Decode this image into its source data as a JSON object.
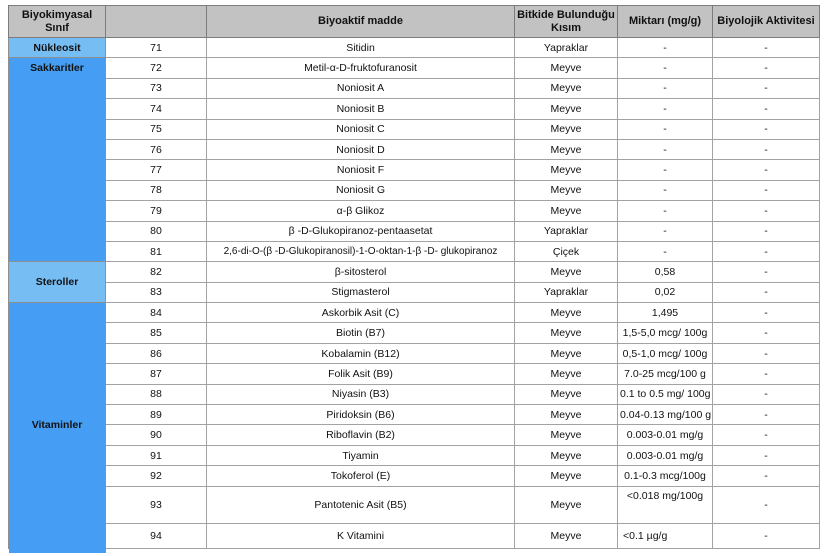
{
  "table": {
    "columns": [
      "Biyokimyasal Sınıf",
      "",
      "Biyoaktif madde",
      "Bitkide Bulunduğu Kısım",
      "Miktarı (mg/g)",
      "Biyolojik Aktivitesi"
    ],
    "groups": [
      {
        "label": "Nükleosit",
        "shade": "light",
        "span": 1,
        "valign": "middle"
      },
      {
        "label": "Sakkaritler",
        "shade": "dark",
        "span": 10,
        "valign": "top"
      },
      {
        "label": "Steroller",
        "shade": "light",
        "span": 2,
        "valign": "middle"
      },
      {
        "label": "Vitaminler",
        "shade": "dark",
        "span": 11,
        "valign": "middle"
      }
    ],
    "rows": [
      {
        "no": "71",
        "group": 0,
        "substance": "Sitidin",
        "part": "Yapraklar",
        "amount": "-",
        "activity": "-"
      },
      {
        "no": "72",
        "group": 1,
        "substance": "Metil-α-D-fruktofuranosit",
        "part": "Meyve",
        "amount": "-",
        "activity": "-"
      },
      {
        "no": "73",
        "substance": "Noniosit A",
        "part": "Meyve",
        "amount": "-",
        "activity": "-"
      },
      {
        "no": "74",
        "substance": "Noniosit B",
        "part": "Meyve",
        "amount": "-",
        "activity": "-"
      },
      {
        "no": "75",
        "substance": "Noniosit C",
        "part": "Meyve",
        "amount": "-",
        "activity": "-"
      },
      {
        "no": "76",
        "substance": "Noniosit D",
        "part": "Meyve",
        "amount": "-",
        "activity": "-"
      },
      {
        "no": "77",
        "substance": "Noniosit F",
        "part": "Meyve",
        "amount": "-",
        "activity": "-"
      },
      {
        "no": "78",
        "substance": "Noniosit G",
        "part": "Meyve",
        "amount": "-",
        "activity": "-"
      },
      {
        "no": "79",
        "substance": "α-β Glikoz",
        "part": "Meyve",
        "amount": "-",
        "activity": "-"
      },
      {
        "no": "80",
        "substance": "β -D-Glukopiranoz-pentaasetat",
        "part": "Yapraklar",
        "amount": "-",
        "activity": "-"
      },
      {
        "no": "81",
        "substance": "2,6-di-O-(β -D-Glukopiranosil)-1-O-oktan-1-β -D- glukopiranoz",
        "part": "Çiçek",
        "amount": "-",
        "activity": "-"
      },
      {
        "no": "82",
        "group": 2,
        "substance": "β-sitosterol",
        "part": "Meyve",
        "amount": "0,58",
        "activity": "-"
      },
      {
        "no": "83",
        "substance": "Stigmasterol",
        "part": "Yapraklar",
        "amount": "0,02",
        "activity": "-"
      },
      {
        "no": "84",
        "group": 3,
        "substance": "Askorbik Asit (C)",
        "part": "Meyve",
        "amount": "1,495",
        "activity": "-"
      },
      {
        "no": "85",
        "substance": "Biotin (B7)",
        "part": "Meyve",
        "amount": "1,5-5,0 mcg/ 100g",
        "activity": "-"
      },
      {
        "no": "86",
        "substance": "Kobalamin (B12)",
        "part": "Meyve",
        "amount": "0,5-1,0 mcg/ 100g",
        "activity": "-"
      },
      {
        "no": "87",
        "substance": "Folik Asit (B9)",
        "part": "Meyve",
        "amount": "7.0-25 mcg/100 g",
        "activity": "-"
      },
      {
        "no": "88",
        "substance": "Niyasin (B3)",
        "part": "Meyve",
        "amount": "0.1 to 0.5 mg/ 100g",
        "activity": "-"
      },
      {
        "no": "89",
        "substance": "Piridoksin (B6)",
        "part": "Meyve",
        "amount": "0.04-0.13 mg/100 g",
        "activity": "-"
      },
      {
        "no": "90",
        "substance": "Riboflavin (B2)",
        "part": "Meyve",
        "amount": "0.003-0.01 mg/g",
        "activity": "-"
      },
      {
        "no": "91",
        "substance": "Tiyamin",
        "part": "Meyve",
        "amount": "0.003-0.01 mg/g",
        "activity": "-"
      },
      {
        "no": "92",
        "substance": "Tokoferol (E)",
        "part": "Meyve",
        "amount": "0.1-0.3 mcg/100g",
        "activity": "-"
      },
      {
        "no": "93",
        "substance": "Pantotenic Asit (B5)",
        "part": "Meyve",
        "amount": "<0.018 mg/100g",
        "activity": "-"
      },
      {
        "no": "94",
        "substance": "K Vitamini",
        "part": "Meyve",
        "amount": "<0.1 µg/g",
        "activity": "-"
      }
    ]
  },
  "colors": {
    "light_blue": "#76bdf4",
    "dark_blue": "#459ef4",
    "header_gray": "#c2c2c2"
  }
}
